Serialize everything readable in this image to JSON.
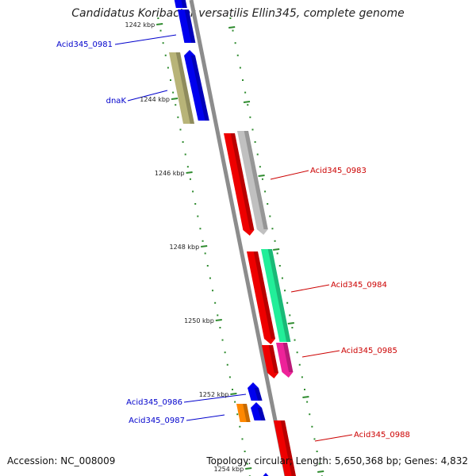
{
  "title": "Candidatus Koribacter versatilis Ellin345, complete genome",
  "footer": {
    "accession": "Accession: NC_008009",
    "summary": "Topology: circular; Length: 5,650,368 bp; Genes: 4,832"
  },
  "colors": {
    "backbone": "#8c8c8c",
    "ruler_ticks": "#2e8b2e",
    "forward_label": "#0000cc",
    "reverse_label": "#cc0000"
  },
  "ruler": [
    {
      "label": "1242 kbp"
    },
    {
      "label": "1244 kbp"
    },
    {
      "label": "1246 kbp"
    },
    {
      "label": "1248 kbp"
    },
    {
      "label": "1250 kbp"
    },
    {
      "label": "1252 kbp"
    },
    {
      "label": "1254 kbp"
    }
  ],
  "genes": [
    {
      "id": "top-fragment",
      "label": "",
      "color": "#0000ee"
    },
    {
      "id": "acid345_0981",
      "label": "Acid345_0981",
      "color": "#0000ee"
    },
    {
      "id": "dnak-small",
      "label": "",
      "color": "#0000ee"
    },
    {
      "id": "dnak",
      "label": "dnaK",
      "color": "#b8b478"
    },
    {
      "id": "acid345_0983-a",
      "label": "",
      "color": "#ee0000"
    },
    {
      "id": "acid345_0983",
      "label": "Acid345_0983",
      "color": "#c0c0c0"
    },
    {
      "id": "acid345_0984-a",
      "label": "",
      "color": "#ee0000"
    },
    {
      "id": "acid345_0984",
      "label": "Acid345_0984",
      "color": "#22ee99"
    },
    {
      "id": "acid345_0985-a",
      "label": "",
      "color": "#ee0000"
    },
    {
      "id": "acid345_0985",
      "label": "Acid345_0985",
      "color": "#ee2299"
    },
    {
      "id": "acid345_0986",
      "label": "Acid345_0986",
      "color": "#0000ee"
    },
    {
      "id": "acid345_0986-b",
      "label": "",
      "color": "#0000ee"
    },
    {
      "id": "acid345_0987",
      "label": "Acid345_0987",
      "color": "#ff8800"
    },
    {
      "id": "acid345_0988",
      "label": "Acid345_0988",
      "color": "#ee0000"
    },
    {
      "id": "bottom-fragment",
      "label": "",
      "color": "#0000ee"
    }
  ]
}
